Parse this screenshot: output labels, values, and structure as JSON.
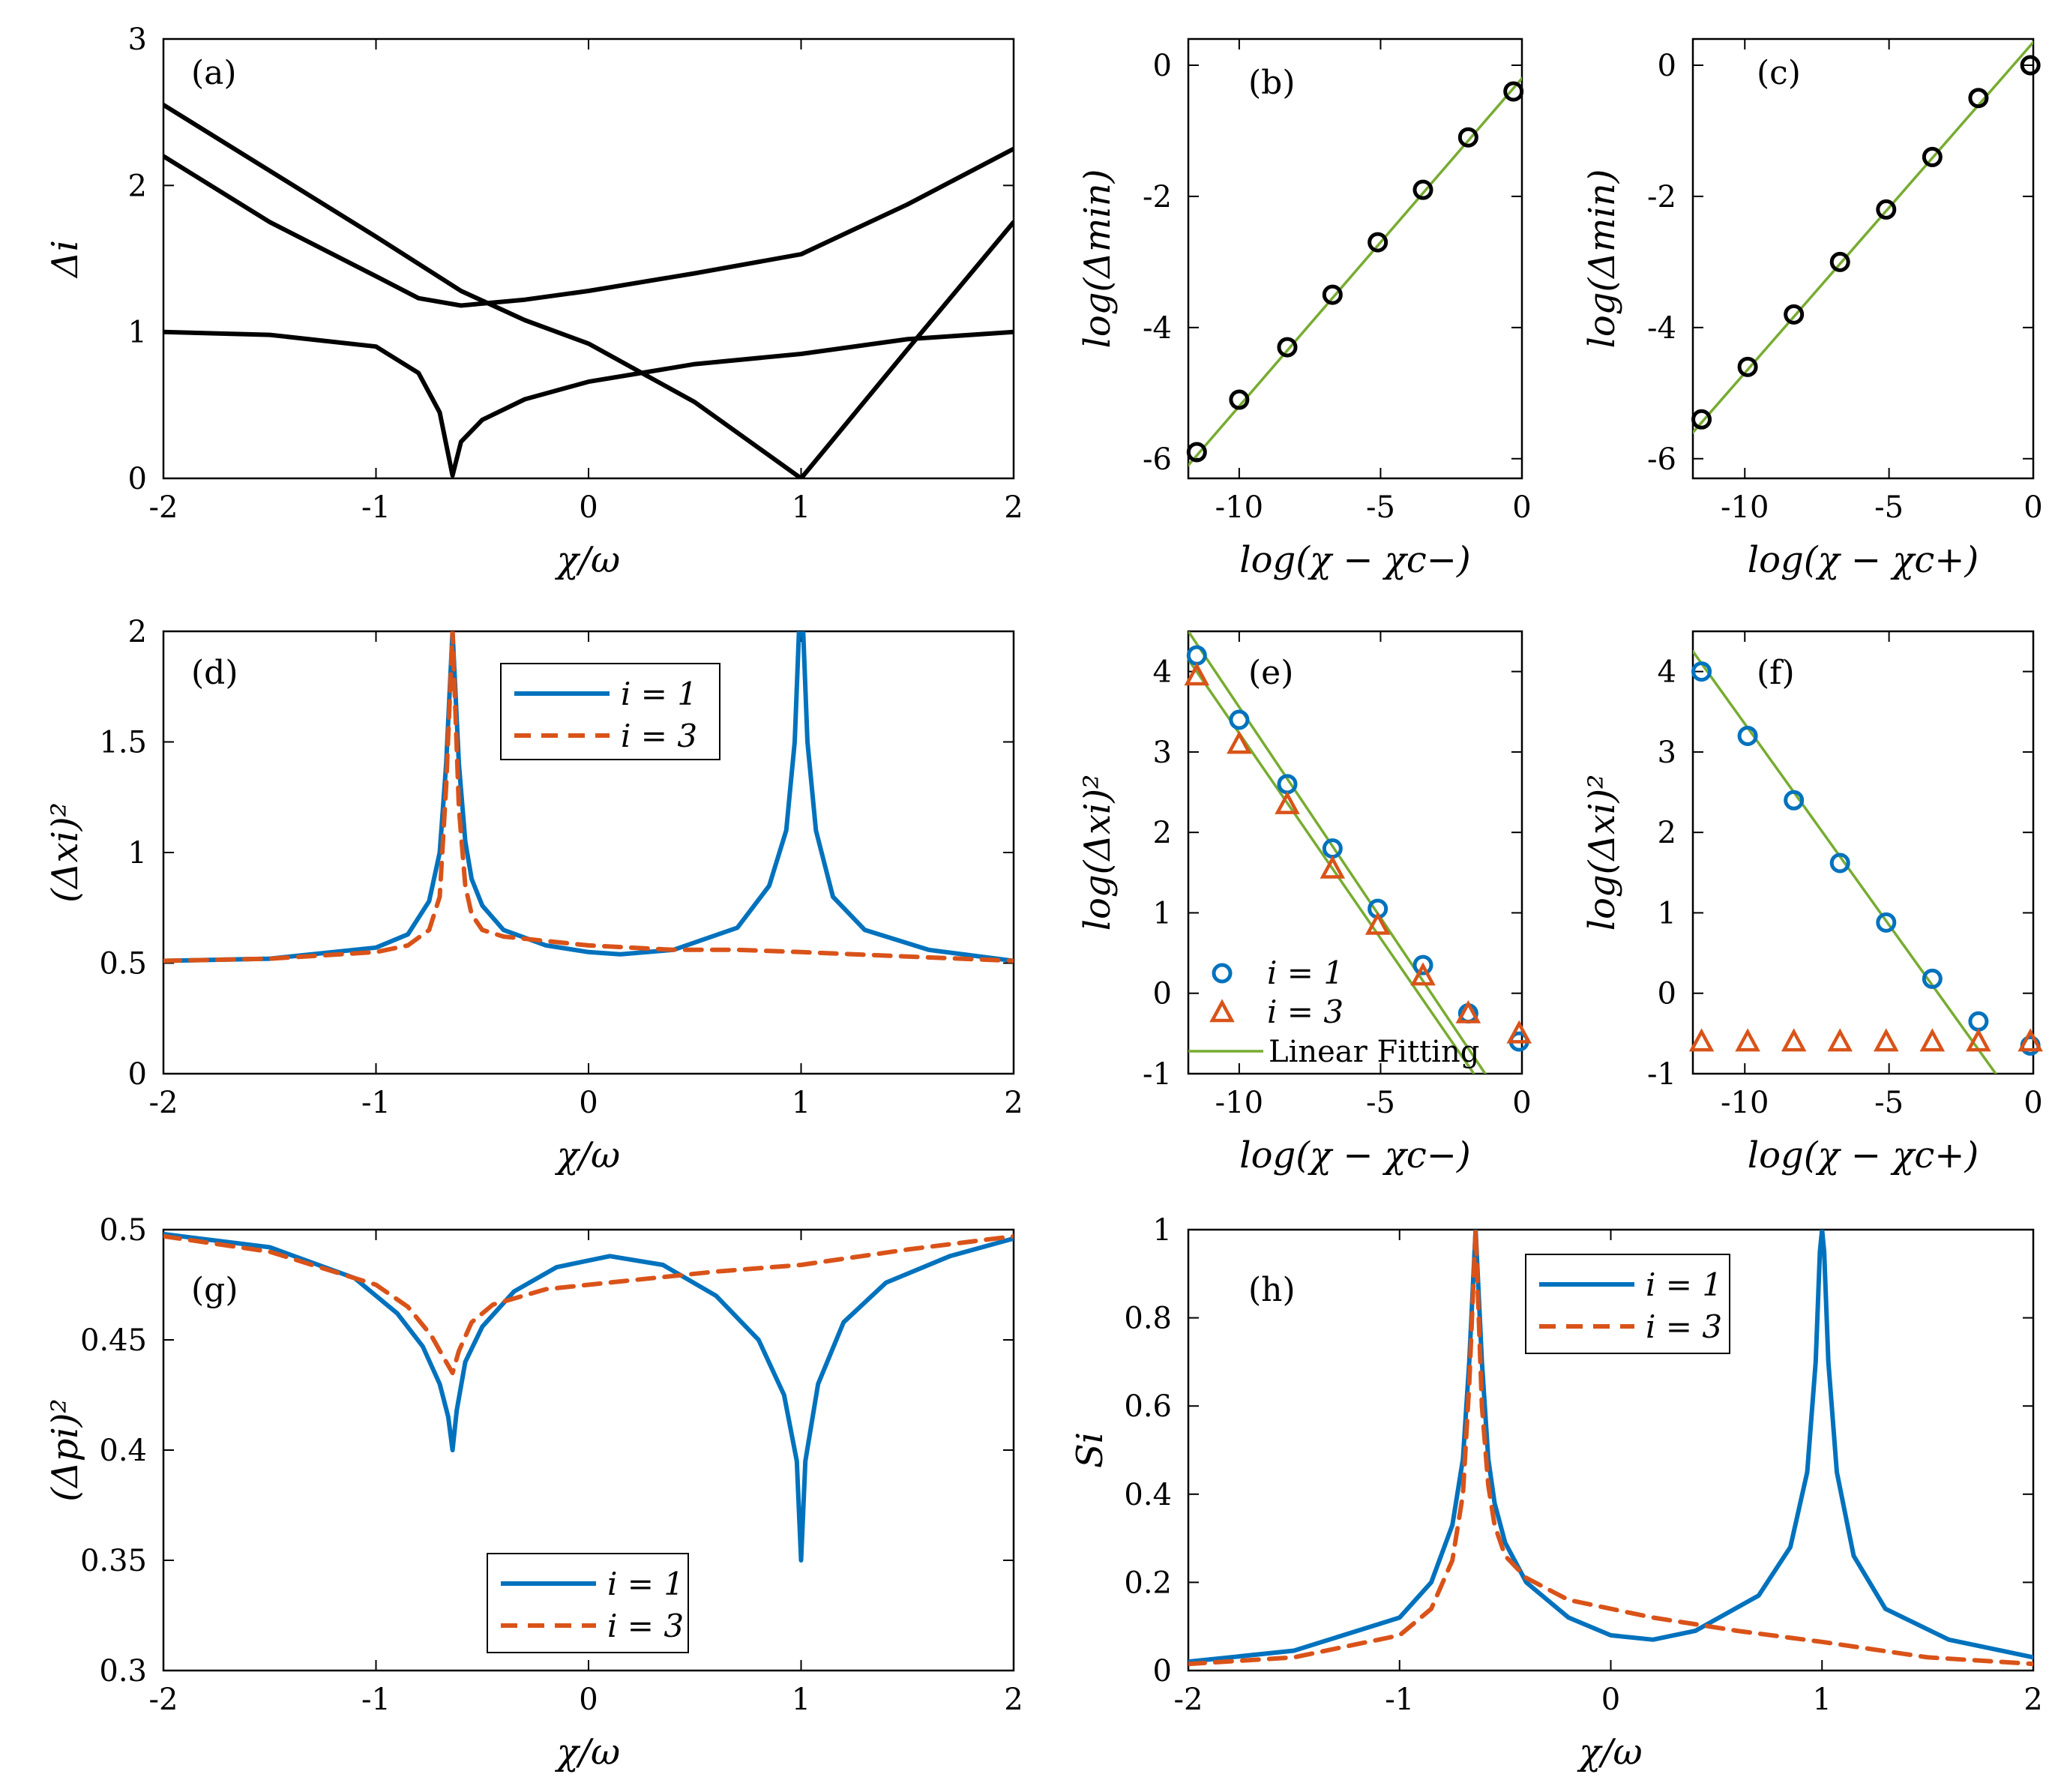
{
  "colors": {
    "blue": "#0072BD",
    "orange": "#D95319",
    "green": "#77AC30",
    "black": "#000000"
  },
  "chart_data": [
    {
      "id": "a",
      "type": "line",
      "panel_label": "(a)",
      "xlabel": "χ/ω",
      "ylabel": "Δ_i",
      "xlim": [
        -2,
        2
      ],
      "ylim": [
        0,
        3
      ],
      "xticks": [
        "-2",
        "-1",
        "0",
        "1",
        "2"
      ],
      "yticks": [
        "0",
        "1",
        "2",
        "3"
      ],
      "series": [
        {
          "name": "upper",
          "color": "#000000",
          "x": [
            -2,
            -1.5,
            -1,
            -0.6,
            -0.3,
            0,
            0.5,
            1,
            1.5,
            2
          ],
          "y": [
            2.55,
            2.1,
            1.65,
            1.28,
            1.08,
            0.92,
            0.52,
            0,
            0.88,
            1.75
          ]
        },
        {
          "name": "middle",
          "color": "#000000",
          "x": [
            -2,
            -1.5,
            -1,
            -0.8,
            -0.6,
            -0.3,
            0,
            0.5,
            1,
            1.5,
            2
          ],
          "y": [
            2.2,
            1.75,
            1.38,
            1.23,
            1.18,
            1.22,
            1.28,
            1.4,
            1.53,
            1.87,
            2.25
          ]
        },
        {
          "name": "lower",
          "color": "#000000",
          "x": [
            -2,
            -1.5,
            -1,
            -0.8,
            -0.7,
            -0.64,
            -0.6,
            -0.5,
            -0.3,
            0,
            0.5,
            1,
            1.5,
            2
          ],
          "y": [
            1,
            0.98,
            0.9,
            0.72,
            0.45,
            0.02,
            0.25,
            0.4,
            0.54,
            0.66,
            0.78,
            0.85,
            0.95,
            1
          ]
        }
      ]
    },
    {
      "id": "b",
      "type": "scatter",
      "panel_label": "(b)",
      "xlabel": "log(χ − χc−)",
      "ylabel": "log(Δmin)",
      "xlim": [
        -11.8,
        0
      ],
      "ylim": [
        -6.3,
        0.4
      ],
      "xticks": [
        "-10",
        "-5",
        "0"
      ],
      "yticks": [
        "-6",
        "-4",
        "-2",
        "0"
      ],
      "series": [
        {
          "name": "data",
          "color": "#000000",
          "marker": "circle",
          "x": [
            -11.5,
            -10,
            -8.3,
            -6.7,
            -5.1,
            -3.5,
            -1.9,
            -0.3
          ],
          "y": [
            -5.9,
            -5.1,
            -4.3,
            -3.5,
            -2.7,
            -1.9,
            -1.1,
            -0.4
          ]
        },
        {
          "name": "fit",
          "color": "#77AC30",
          "line": true,
          "x": [
            -11.8,
            0
          ],
          "y": [
            -6.1,
            -0.2
          ]
        }
      ]
    },
    {
      "id": "c",
      "type": "scatter",
      "panel_label": "(c)",
      "xlabel": "log(χ − χc+)",
      "ylabel": "log(Δmin)",
      "xlim": [
        -11.8,
        0
      ],
      "ylim": [
        -6.3,
        0.4
      ],
      "xticks": [
        "-10",
        "-5",
        "0"
      ],
      "yticks": [
        "-6",
        "-4",
        "-2",
        "0"
      ],
      "series": [
        {
          "name": "data",
          "color": "#000000",
          "marker": "circle",
          "x": [
            -11.5,
            -9.9,
            -8.3,
            -6.7,
            -5.1,
            -3.5,
            -1.9,
            -0.1
          ],
          "y": [
            -5.4,
            -4.6,
            -3.8,
            -3,
            -2.2,
            -1.4,
            -0.5,
            0
          ]
        },
        {
          "name": "fit",
          "color": "#77AC30",
          "line": true,
          "x": [
            -11.8,
            0
          ],
          "y": [
            -5.6,
            0.35
          ]
        }
      ]
    },
    {
      "id": "d",
      "type": "line",
      "panel_label": "(d)",
      "xlabel": "χ/ω",
      "ylabel": "(Δx_i)²",
      "xlim": [
        -2,
        2
      ],
      "ylim": [
        0,
        2
      ],
      "xticks": [
        "-2",
        "-1",
        "0",
        "1",
        "2"
      ],
      "yticks": [
        "0",
        "0.5",
        "1",
        "1.5",
        "2"
      ],
      "legend": [
        {
          "label": "i = 1",
          "style": "solid",
          "color": "#0072BD"
        },
        {
          "label": "i = 3",
          "style": "dashed",
          "color": "#D95319"
        }
      ],
      "series": [
        {
          "name": "i = 1",
          "color": "#0072BD",
          "style": "solid",
          "x": [
            -2,
            -1.5,
            -1,
            -0.85,
            -0.75,
            -0.7,
            -0.67,
            -0.64,
            -0.61,
            -0.58,
            -0.55,
            -0.5,
            -0.4,
            -0.2,
            0,
            0.15,
            0.4,
            0.7,
            0.85,
            0.93,
            0.97,
            0.99,
            1,
            1.01,
            1.03,
            1.07,
            1.15,
            1.3,
            1.6,
            2
          ],
          "y": [
            0.51,
            0.52,
            0.57,
            0.63,
            0.78,
            1.0,
            1.4,
            2.0,
            1.4,
            1.05,
            0.88,
            0.76,
            0.65,
            0.58,
            0.55,
            0.54,
            0.56,
            0.66,
            0.85,
            1.1,
            1.5,
            2.0,
            2.0,
            2.0,
            1.5,
            1.1,
            0.8,
            0.65,
            0.56,
            0.51
          ]
        },
        {
          "name": "i = 3",
          "color": "#D95319",
          "style": "dashed",
          "x": [
            -2,
            -1.5,
            -1,
            -0.85,
            -0.75,
            -0.7,
            -0.67,
            -0.64,
            -0.61,
            -0.58,
            -0.55,
            -0.5,
            -0.4,
            -0.2,
            0,
            0.4,
            0.7,
            1,
            1.5,
            2
          ],
          "y": [
            0.51,
            0.52,
            0.55,
            0.58,
            0.65,
            0.8,
            1.3,
            2.0,
            1.2,
            0.85,
            0.72,
            0.65,
            0.62,
            0.6,
            0.58,
            0.56,
            0.56,
            0.55,
            0.53,
            0.51
          ]
        }
      ]
    },
    {
      "id": "e",
      "type": "scatter",
      "panel_label": "(e)",
      "xlabel": "log(χ − χc−)",
      "ylabel": "log(Δx_i)²",
      "xlim": [
        -11.8,
        0
      ],
      "ylim": [
        -1,
        4.5
      ],
      "xticks": [
        "-10",
        "-5",
        "0"
      ],
      "yticks": [
        "-1",
        "0",
        "1",
        "2",
        "3",
        "4"
      ],
      "legend": [
        {
          "label": "i = 1",
          "marker": "circle",
          "color": "#0072BD"
        },
        {
          "label": "i = 3",
          "marker": "triangle",
          "color": "#D95319"
        },
        {
          "label": "Linear Fitting",
          "style": "solid",
          "color": "#77AC30"
        }
      ],
      "series": [
        {
          "name": "i = 1",
          "color": "#0072BD",
          "marker": "circle",
          "x": [
            -11.5,
            -10,
            -8.3,
            -6.7,
            -5.1,
            -3.5,
            -1.9,
            -0.1
          ],
          "y": [
            4.2,
            3.4,
            2.6,
            1.8,
            1.05,
            0.35,
            -0.25,
            -0.6
          ]
        },
        {
          "name": "i = 3",
          "color": "#D95319",
          "marker": "triangle",
          "x": [
            -11.5,
            -10,
            -8.3,
            -6.7,
            -5.1,
            -3.5,
            -1.9,
            -0.1
          ],
          "y": [
            3.95,
            3.1,
            2.35,
            1.55,
            0.85,
            0.22,
            -0.25,
            -0.5
          ]
        },
        {
          "name": "fit1",
          "color": "#77AC30",
          "line": true,
          "x": [
            -11.8,
            -1.3
          ],
          "y": [
            4.5,
            -1
          ]
        },
        {
          "name": "fit3",
          "color": "#77AC30",
          "line": true,
          "x": [
            -11.8,
            -1.7
          ],
          "y": [
            4.15,
            -1
          ]
        }
      ]
    },
    {
      "id": "f",
      "type": "scatter",
      "panel_label": "(f)",
      "xlabel": "log(χ − χc+)",
      "ylabel": "log(Δx_i)²",
      "xlim": [
        -11.8,
        0
      ],
      "ylim": [
        -1,
        4.5
      ],
      "xticks": [
        "-10",
        "-5",
        "0"
      ],
      "yticks": [
        "-1",
        "0",
        "1",
        "2",
        "3",
        "4"
      ],
      "series": [
        {
          "name": "i = 1",
          "color": "#0072BD",
          "marker": "circle",
          "x": [
            -11.5,
            -9.9,
            -8.3,
            -6.7,
            -5.1,
            -3.5,
            -1.9,
            -0.1
          ],
          "y": [
            4.0,
            3.2,
            2.4,
            1.62,
            0.88,
            0.18,
            -0.35,
            -0.65
          ]
        },
        {
          "name": "i = 3",
          "color": "#D95319",
          "marker": "triangle",
          "x": [
            -11.5,
            -9.9,
            -8.3,
            -6.7,
            -5.1,
            -3.5,
            -1.9,
            -0.1
          ],
          "y": [
            -0.6,
            -0.6,
            -0.6,
            -0.6,
            -0.6,
            -0.6,
            -0.6,
            -0.6
          ]
        },
        {
          "name": "fit1",
          "color": "#77AC30",
          "line": true,
          "x": [
            -11.8,
            -1.3
          ],
          "y": [
            4.25,
            -1
          ]
        }
      ]
    },
    {
      "id": "g",
      "type": "line",
      "panel_label": "(g)",
      "xlabel": "χ/ω",
      "ylabel": "(Δp_i)²",
      "xlim": [
        -2,
        2
      ],
      "ylim": [
        0.3,
        0.5
      ],
      "xticks": [
        "-2",
        "-1",
        "0",
        "1",
        "2"
      ],
      "yticks": [
        "0.3",
        "0.35",
        "0.4",
        "0.45",
        "0.5"
      ],
      "legend": [
        {
          "label": "i = 1",
          "style": "solid",
          "color": "#0072BD"
        },
        {
          "label": "i = 3",
          "style": "dashed",
          "color": "#D95319"
        }
      ],
      "series": [
        {
          "name": "i = 1",
          "color": "#0072BD",
          "style": "solid",
          "x": [
            -2,
            -1.5,
            -1.1,
            -0.9,
            -0.78,
            -0.7,
            -0.66,
            -0.64,
            -0.62,
            -0.58,
            -0.5,
            -0.35,
            -0.15,
            0.1,
            0.35,
            0.6,
            0.8,
            0.92,
            0.98,
            1,
            1.02,
            1.08,
            1.2,
            1.4,
            1.7,
            2
          ],
          "y": [
            0.498,
            0.492,
            0.478,
            0.462,
            0.447,
            0.43,
            0.415,
            0.4,
            0.418,
            0.44,
            0.456,
            0.472,
            0.483,
            0.488,
            0.484,
            0.47,
            0.45,
            0.425,
            0.395,
            0.35,
            0.395,
            0.43,
            0.458,
            0.476,
            0.488,
            0.496
          ]
        },
        {
          "name": "i = 3",
          "color": "#D95319",
          "style": "dashed",
          "x": [
            -2,
            -1.5,
            -1,
            -0.85,
            -0.74,
            -0.67,
            -0.64,
            -0.61,
            -0.55,
            -0.45,
            -0.2,
            0.2,
            0.6,
            1,
            1.5,
            2
          ],
          "y": [
            0.497,
            0.49,
            0.475,
            0.465,
            0.452,
            0.44,
            0.435,
            0.445,
            0.458,
            0.466,
            0.473,
            0.477,
            0.481,
            0.484,
            0.491,
            0.497
          ]
        }
      ]
    },
    {
      "id": "h",
      "type": "line",
      "panel_label": "(h)",
      "xlabel": "χ/ω",
      "ylabel": "S_i",
      "xlim": [
        -2,
        2
      ],
      "ylim": [
        0,
        1
      ],
      "xticks": [
        "-2",
        "-1",
        "0",
        "1",
        "2"
      ],
      "yticks": [
        "0",
        "0.2",
        "0.4",
        "0.6",
        "0.8",
        "1"
      ],
      "legend": [
        {
          "label": "i = 1",
          "style": "solid",
          "color": "#0072BD"
        },
        {
          "label": "i = 3",
          "style": "dashed",
          "color": "#D95319"
        }
      ],
      "series": [
        {
          "name": "i = 1",
          "color": "#0072BD",
          "style": "solid",
          "x": [
            -2,
            -1.5,
            -1,
            -0.85,
            -0.75,
            -0.7,
            -0.67,
            -0.64,
            -0.61,
            -0.58,
            -0.55,
            -0.5,
            -0.4,
            -0.2,
            0,
            0.2,
            0.4,
            0.7,
            0.85,
            0.93,
            0.97,
            0.99,
            1,
            1.01,
            1.03,
            1.07,
            1.15,
            1.3,
            1.6,
            2
          ],
          "y": [
            0.02,
            0.045,
            0.12,
            0.2,
            0.33,
            0.48,
            0.7,
            1.0,
            0.7,
            0.48,
            0.38,
            0.29,
            0.2,
            0.12,
            0.08,
            0.07,
            0.09,
            0.17,
            0.28,
            0.45,
            0.7,
            0.95,
            1.0,
            0.95,
            0.7,
            0.45,
            0.26,
            0.14,
            0.07,
            0.03
          ]
        },
        {
          "name": "i = 3",
          "color": "#D95319",
          "style": "dashed",
          "x": [
            -2,
            -1.5,
            -1,
            -0.85,
            -0.75,
            -0.7,
            -0.67,
            -0.64,
            -0.61,
            -0.58,
            -0.55,
            -0.5,
            -0.4,
            -0.2,
            0.2,
            0.6,
            1,
            1.5,
            2
          ],
          "y": [
            0.015,
            0.03,
            0.08,
            0.14,
            0.25,
            0.4,
            0.65,
            1.0,
            0.6,
            0.42,
            0.33,
            0.26,
            0.21,
            0.16,
            0.12,
            0.09,
            0.065,
            0.03,
            0.015
          ]
        }
      ]
    }
  ]
}
